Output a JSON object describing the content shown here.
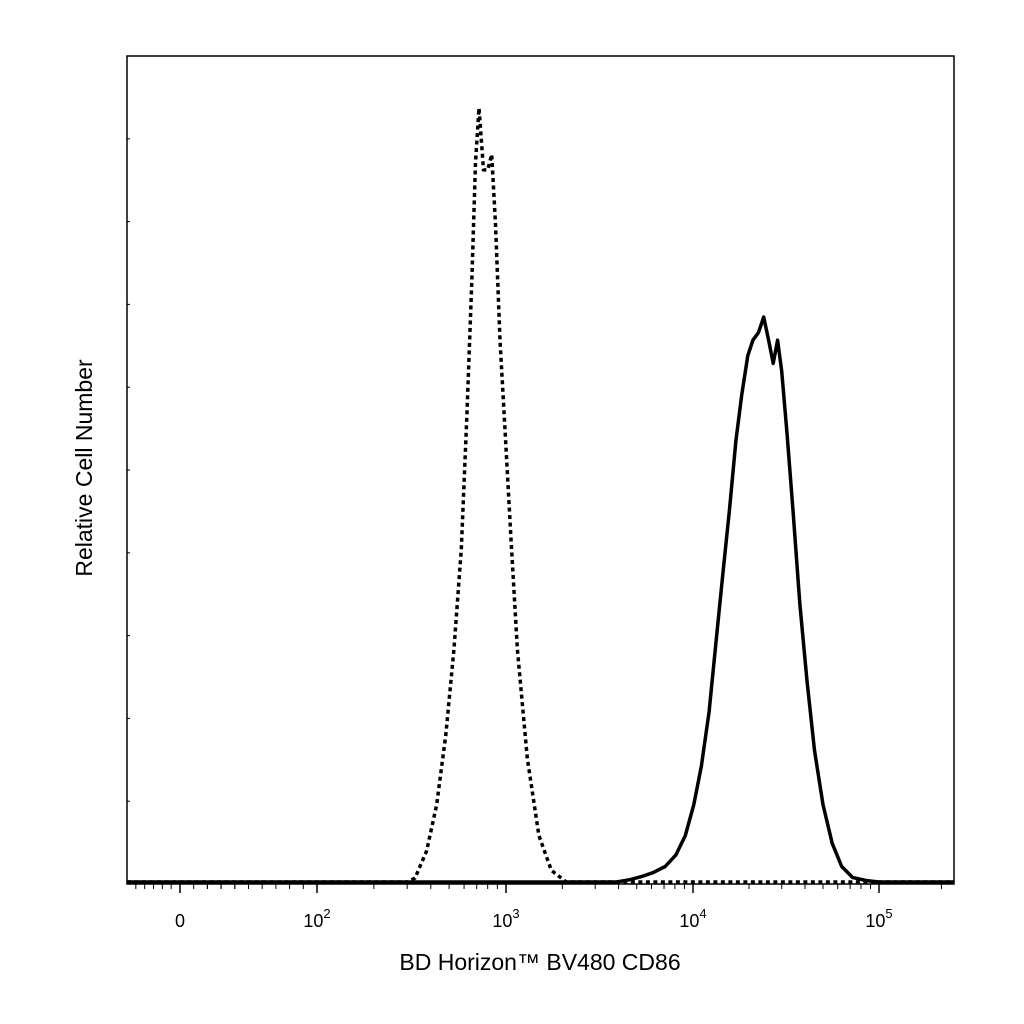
{
  "chart_data": {
    "type": "line",
    "xlabel": "BD Horizon™ BV480 CD86",
    "ylabel": "Relative Cell Number",
    "x_scale": "biexponential",
    "x_ticks": [
      {
        "value": 0,
        "base": "0",
        "exp": ""
      },
      {
        "value": 100,
        "base": "10",
        "exp": "2"
      },
      {
        "value": 1000,
        "base": "10",
        "exp": "3"
      },
      {
        "value": 10000,
        "base": "10",
        "exp": "4"
      },
      {
        "value": 100000,
        "base": "10",
        "exp": "5"
      }
    ],
    "xlim": [
      -60,
      230000
    ],
    "ylim": [
      0,
      1.0
    ],
    "grid": false,
    "legend": "none",
    "series": [
      {
        "style": "dotted",
        "color": "#000000",
        "points": [
          [
            -60,
            0
          ],
          [
            300,
            0
          ],
          [
            330,
            0.005
          ],
          [
            380,
            0.04
          ],
          [
            430,
            0.1
          ],
          [
            480,
            0.19
          ],
          [
            530,
            0.3
          ],
          [
            580,
            0.43
          ],
          [
            620,
            0.6
          ],
          [
            660,
            0.78
          ],
          [
            690,
            0.93
          ],
          [
            720,
            1.0
          ],
          [
            760,
            0.92
          ],
          [
            800,
            0.92
          ],
          [
            840,
            0.94
          ],
          [
            880,
            0.85
          ],
          [
            930,
            0.7
          ],
          [
            990,
            0.58
          ],
          [
            1060,
            0.45
          ],
          [
            1150,
            0.3
          ],
          [
            1300,
            0.16
          ],
          [
            1500,
            0.06
          ],
          [
            1750,
            0.015
          ],
          [
            2100,
            0
          ],
          [
            230000,
            0
          ]
        ]
      },
      {
        "style": "solid",
        "color": "#000000",
        "points": [
          [
            -60,
            0
          ],
          [
            3900,
            0
          ],
          [
            4600,
            0.003
          ],
          [
            5300,
            0.007
          ],
          [
            6100,
            0.012
          ],
          [
            7100,
            0.02
          ],
          [
            8100,
            0.035
          ],
          [
            9100,
            0.06
          ],
          [
            10100,
            0.1
          ],
          [
            11100,
            0.15
          ],
          [
            12200,
            0.22
          ],
          [
            13300,
            0.31
          ],
          [
            14500,
            0.4
          ],
          [
            15700,
            0.48
          ],
          [
            17000,
            0.57
          ],
          [
            18300,
            0.63
          ],
          [
            19700,
            0.68
          ],
          [
            21000,
            0.7
          ],
          [
            22500,
            0.71
          ],
          [
            24000,
            0.73
          ],
          [
            25500,
            0.7
          ],
          [
            27000,
            0.67
          ],
          [
            28500,
            0.7
          ],
          [
            30000,
            0.66
          ],
          [
            32000,
            0.58
          ],
          [
            34500,
            0.48
          ],
          [
            37500,
            0.36
          ],
          [
            41000,
            0.26
          ],
          [
            45000,
            0.17
          ],
          [
            50000,
            0.1
          ],
          [
            56000,
            0.05
          ],
          [
            63000,
            0.02
          ],
          [
            72000,
            0.006
          ],
          [
            85000,
            0.002
          ],
          [
            100000,
            0
          ],
          [
            230000,
            0
          ]
        ]
      }
    ]
  }
}
